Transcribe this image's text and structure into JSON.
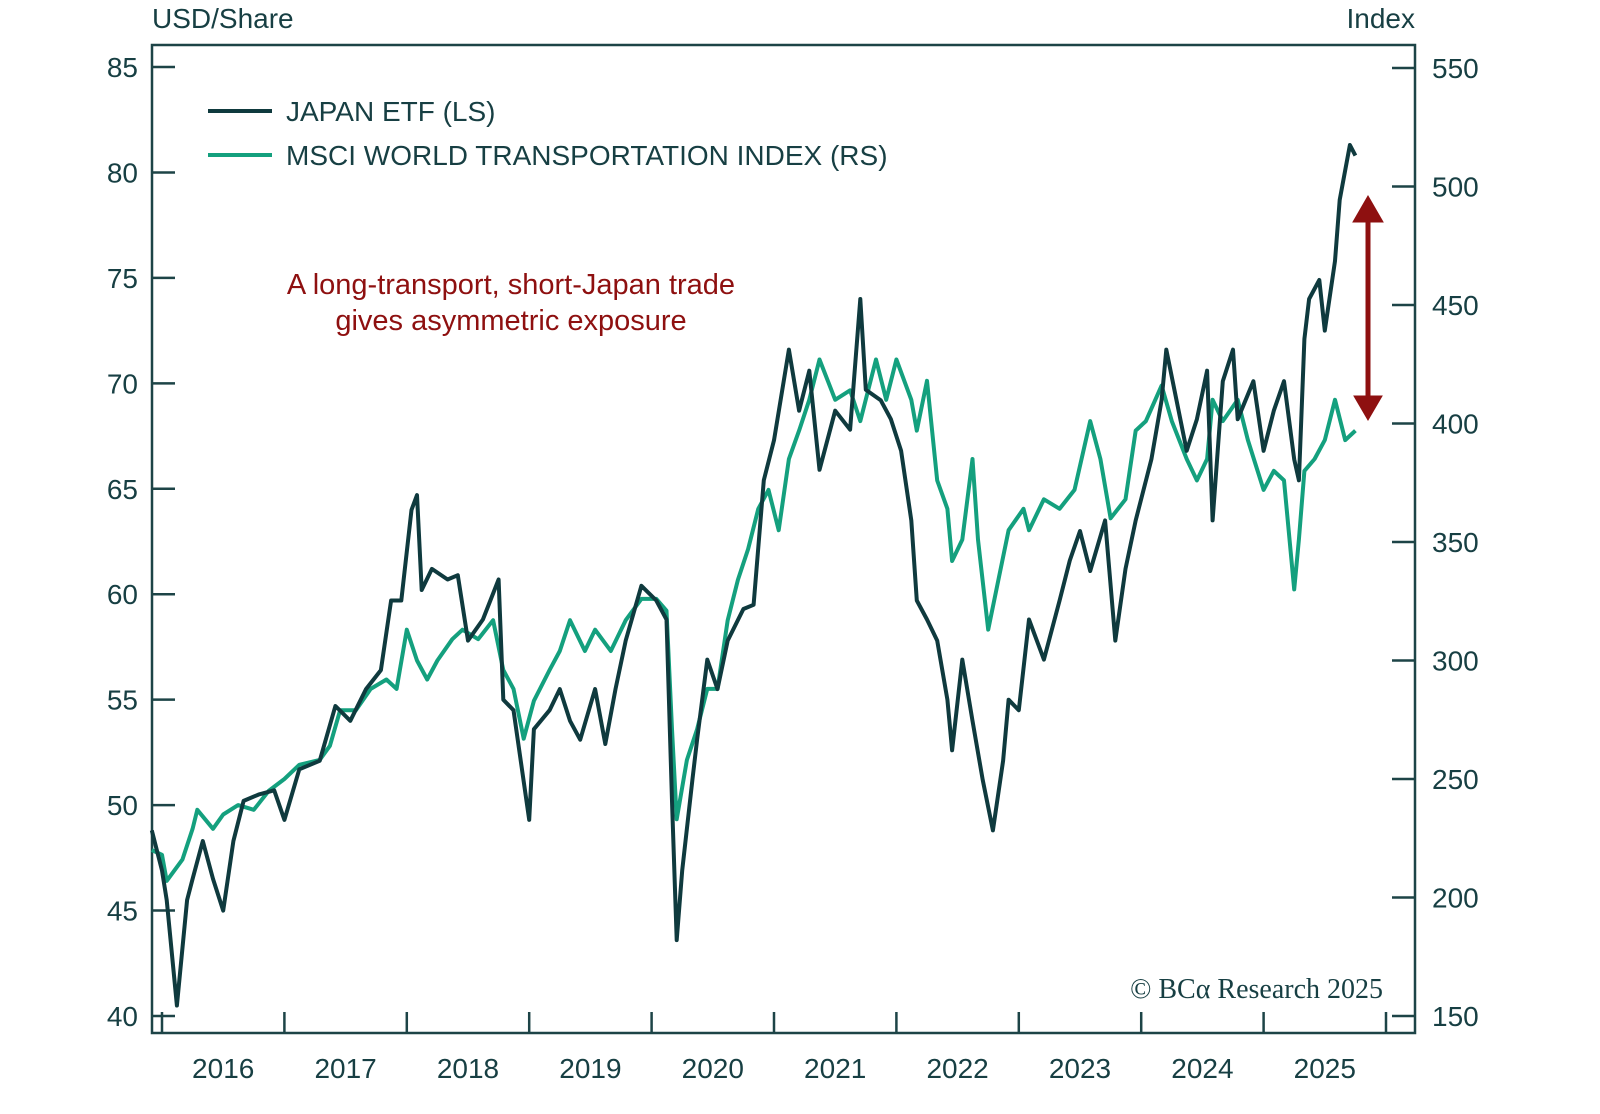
{
  "chart_data": {
    "type": "line",
    "left_axis_label": "USD/Share",
    "right_axis_label": "Index",
    "left_ylim": [
      40,
      85
    ],
    "left_yticks": [
      40,
      45,
      50,
      55,
      60,
      65,
      70,
      75,
      80,
      85
    ],
    "right_ylim": [
      150,
      550
    ],
    "right_yticks": [
      150,
      200,
      250,
      300,
      350,
      400,
      450,
      500,
      550
    ],
    "xlim": [
      "2016-01-01",
      "2026-01-01"
    ],
    "xticks": [
      "2016-01-01",
      "2017-01-01",
      "2018-01-01",
      "2019-01-01",
      "2020-01-01",
      "2021-01-01",
      "2022-01-01",
      "2023-01-01",
      "2024-01-01",
      "2025-01-01",
      "2026-01-01"
    ],
    "xtick_labels": [
      "2016",
      "2017",
      "2018",
      "2019",
      "2020",
      "2021",
      "2022",
      "2023",
      "2024",
      "2025"
    ],
    "grid": false,
    "legend_placement": "top-left",
    "annotation": {
      "lines": [
        "A long-transport, short-Japan trade",
        "gives asymmetric exposure"
      ],
      "color": "#8e1010",
      "arrow": "double-headed vertical arrow between the two series at the latest date"
    },
    "source": "© BCα Research 2025",
    "series": [
      {
        "name": "JAPAN ETF (LS)",
        "axis": "left",
        "color": "#0f3a3e",
        "points": [
          [
            "2015-12-01",
            48.8
          ],
          [
            "2016-01-01",
            46.9
          ],
          [
            "2016-01-15",
            45.5
          ],
          [
            "2016-02-15",
            40.5
          ],
          [
            "2016-03-15",
            45.5
          ],
          [
            "2016-04-01",
            46.5
          ],
          [
            "2016-05-01",
            48.3
          ],
          [
            "2016-06-01",
            46.5
          ],
          [
            "2016-07-01",
            45.0
          ],
          [
            "2016-08-01",
            48.3
          ],
          [
            "2016-09-01",
            50.2
          ],
          [
            "2016-10-15",
            50.5
          ],
          [
            "2016-12-01",
            50.7
          ],
          [
            "2017-01-01",
            49.3
          ],
          [
            "2017-02-15",
            51.7
          ],
          [
            "2017-04-15",
            52.1
          ],
          [
            "2017-06-01",
            54.7
          ],
          [
            "2017-07-15",
            54.0
          ],
          [
            "2017-09-01",
            55.5
          ],
          [
            "2017-10-15",
            56.4
          ],
          [
            "2017-11-15",
            59.7
          ],
          [
            "2017-12-15",
            59.7
          ],
          [
            "2018-01-15",
            64.0
          ],
          [
            "2018-02-01",
            64.7
          ],
          [
            "2018-02-15",
            60.2
          ],
          [
            "2018-03-15",
            61.2
          ],
          [
            "2018-05-01",
            60.7
          ],
          [
            "2018-06-01",
            60.9
          ],
          [
            "2018-07-01",
            57.8
          ],
          [
            "2018-08-15",
            58.8
          ],
          [
            "2018-10-01",
            60.7
          ],
          [
            "2018-10-15",
            55.0
          ],
          [
            "2018-11-15",
            54.5
          ],
          [
            "2019-01-01",
            49.3
          ],
          [
            "2019-01-15",
            53.6
          ],
          [
            "2019-03-01",
            54.5
          ],
          [
            "2019-04-01",
            55.5
          ],
          [
            "2019-05-01",
            54.0
          ],
          [
            "2019-06-01",
            53.1
          ],
          [
            "2019-07-15",
            55.5
          ],
          [
            "2019-08-15",
            52.9
          ],
          [
            "2019-09-15",
            55.5
          ],
          [
            "2019-10-15",
            57.8
          ],
          [
            "2019-12-01",
            60.4
          ],
          [
            "2020-01-15",
            59.7
          ],
          [
            "2020-02-15",
            58.8
          ],
          [
            "2020-03-01",
            50.2
          ],
          [
            "2020-03-15",
            43.6
          ],
          [
            "2020-04-01",
            46.9
          ],
          [
            "2020-05-01",
            51.2
          ],
          [
            "2020-05-15",
            53.1
          ],
          [
            "2020-06-15",
            56.9
          ],
          [
            "2020-07-15",
            55.5
          ],
          [
            "2020-08-15",
            57.8
          ],
          [
            "2020-10-01",
            59.3
          ],
          [
            "2020-11-01",
            59.5
          ],
          [
            "2020-12-01",
            65.4
          ],
          [
            "2021-01-01",
            67.3
          ],
          [
            "2021-02-15",
            71.6
          ],
          [
            "2021-03-15",
            68.7
          ],
          [
            "2021-04-15",
            70.6
          ],
          [
            "2021-05-15",
            65.9
          ],
          [
            "2021-07-01",
            68.7
          ],
          [
            "2021-08-15",
            67.8
          ],
          [
            "2021-09-15",
            74.0
          ],
          [
            "2021-10-01",
            69.7
          ],
          [
            "2021-11-15",
            69.2
          ],
          [
            "2021-12-15",
            68.3
          ],
          [
            "2022-01-15",
            66.8
          ],
          [
            "2022-02-15",
            63.5
          ],
          [
            "2022-03-01",
            59.7
          ],
          [
            "2022-04-01",
            58.8
          ],
          [
            "2022-05-01",
            57.8
          ],
          [
            "2022-06-01",
            55.0
          ],
          [
            "2022-06-15",
            52.6
          ],
          [
            "2022-07-15",
            56.9
          ],
          [
            "2022-08-15",
            54.0
          ],
          [
            "2022-09-15",
            51.2
          ],
          [
            "2022-10-15",
            48.8
          ],
          [
            "2022-11-15",
            52.1
          ],
          [
            "2022-12-01",
            55.0
          ],
          [
            "2023-01-01",
            54.5
          ],
          [
            "2023-02-01",
            58.8
          ],
          [
            "2023-03-15",
            56.9
          ],
          [
            "2023-05-01",
            59.7
          ],
          [
            "2023-06-01",
            61.6
          ],
          [
            "2023-07-01",
            63.0
          ],
          [
            "2023-08-01",
            61.1
          ],
          [
            "2023-09-15",
            63.5
          ],
          [
            "2023-10-15",
            57.8
          ],
          [
            "2023-11-15",
            61.2
          ],
          [
            "2023-12-15",
            63.5
          ],
          [
            "2024-02-01",
            66.4
          ],
          [
            "2024-03-01",
            69.2
          ],
          [
            "2024-03-15",
            71.6
          ],
          [
            "2024-04-15",
            69.2
          ],
          [
            "2024-05-15",
            66.8
          ],
          [
            "2024-06-15",
            68.3
          ],
          [
            "2024-07-15",
            70.6
          ],
          [
            "2024-08-01",
            63.5
          ],
          [
            "2024-09-01",
            70.1
          ],
          [
            "2024-10-01",
            71.6
          ],
          [
            "2024-10-15",
            68.3
          ],
          [
            "2024-12-01",
            70.1
          ],
          [
            "2025-01-01",
            66.8
          ],
          [
            "2025-02-01",
            68.7
          ],
          [
            "2025-03-01",
            70.1
          ],
          [
            "2025-04-01",
            66.4
          ],
          [
            "2025-04-15",
            65.4
          ],
          [
            "2025-05-01",
            72.1
          ],
          [
            "2025-05-15",
            74.0
          ],
          [
            "2025-06-15",
            74.9
          ],
          [
            "2025-07-01",
            72.5
          ],
          [
            "2025-08-01",
            75.8
          ],
          [
            "2025-08-15",
            78.7
          ],
          [
            "2025-09-01",
            80.1
          ],
          [
            "2025-09-15",
            81.3
          ],
          [
            "2025-10-01",
            80.8
          ]
        ]
      },
      {
        "name": "MSCI WORLD TRANSPORTATION INDEX (RS)",
        "axis": "right",
        "color": "#14a07e",
        "points": [
          [
            "2015-12-01",
            220
          ],
          [
            "2016-01-01",
            218
          ],
          [
            "2016-01-15",
            207
          ],
          [
            "2016-03-01",
            216
          ],
          [
            "2016-04-01",
            229
          ],
          [
            "2016-04-15",
            237
          ],
          [
            "2016-06-01",
            229
          ],
          [
            "2016-07-01",
            235
          ],
          [
            "2016-08-15",
            239
          ],
          [
            "2016-10-01",
            237
          ],
          [
            "2016-11-15",
            245
          ],
          [
            "2017-01-01",
            250
          ],
          [
            "2017-02-15",
            256
          ],
          [
            "2017-04-15",
            258
          ],
          [
            "2017-05-15",
            264
          ],
          [
            "2017-06-15",
            279
          ],
          [
            "2017-08-01",
            279
          ],
          [
            "2017-09-15",
            288
          ],
          [
            "2017-11-01",
            292
          ],
          [
            "2017-12-01",
            288
          ],
          [
            "2018-01-01",
            313
          ],
          [
            "2018-02-01",
            300
          ],
          [
            "2018-03-01",
            292
          ],
          [
            "2018-04-01",
            300
          ],
          [
            "2018-05-15",
            309
          ],
          [
            "2018-06-15",
            313
          ],
          [
            "2018-08-01",
            309
          ],
          [
            "2018-09-15",
            317
          ],
          [
            "2018-10-15",
            296
          ],
          [
            "2018-11-15",
            288
          ],
          [
            "2018-12-15",
            267
          ],
          [
            "2019-01-15",
            283
          ],
          [
            "2019-03-01",
            296
          ],
          [
            "2019-04-01",
            304
          ],
          [
            "2019-05-01",
            317
          ],
          [
            "2019-06-15",
            304
          ],
          [
            "2019-07-15",
            313
          ],
          [
            "2019-09-01",
            304
          ],
          [
            "2019-10-15",
            317
          ],
          [
            "2019-12-01",
            326
          ],
          [
            "2020-01-15",
            326
          ],
          [
            "2020-02-15",
            321
          ],
          [
            "2020-03-01",
            271
          ],
          [
            "2020-03-15",
            233
          ],
          [
            "2020-04-15",
            258
          ],
          [
            "2020-05-15",
            271
          ],
          [
            "2020-06-15",
            288
          ],
          [
            "2020-07-15",
            288
          ],
          [
            "2020-08-15",
            317
          ],
          [
            "2020-09-15",
            334
          ],
          [
            "2020-10-15",
            347
          ],
          [
            "2020-11-15",
            364
          ],
          [
            "2020-12-15",
            372
          ],
          [
            "2021-01-15",
            355
          ],
          [
            "2021-02-15",
            385
          ],
          [
            "2021-03-15",
            397
          ],
          [
            "2021-04-15",
            410
          ],
          [
            "2021-05-15",
            427
          ],
          [
            "2021-07-01",
            410
          ],
          [
            "2021-08-15",
            414
          ],
          [
            "2021-09-15",
            401
          ],
          [
            "2021-11-01",
            427
          ],
          [
            "2021-12-01",
            410
          ],
          [
            "2022-01-01",
            427
          ],
          [
            "2022-02-15",
            410
          ],
          [
            "2022-03-01",
            397
          ],
          [
            "2022-04-01",
            418
          ],
          [
            "2022-05-01",
            376
          ],
          [
            "2022-06-01",
            364
          ],
          [
            "2022-06-15",
            342
          ],
          [
            "2022-07-15",
            351
          ],
          [
            "2022-08-15",
            385
          ],
          [
            "2022-09-01",
            351
          ],
          [
            "2022-10-01",
            313
          ],
          [
            "2022-11-01",
            334
          ],
          [
            "2022-12-01",
            355
          ],
          [
            "2023-01-15",
            364
          ],
          [
            "2023-02-01",
            355
          ],
          [
            "2023-03-15",
            368
          ],
          [
            "2023-05-01",
            364
          ],
          [
            "2023-06-15",
            372
          ],
          [
            "2023-08-01",
            401
          ],
          [
            "2023-09-01",
            385
          ],
          [
            "2023-10-01",
            360
          ],
          [
            "2023-11-15",
            368
          ],
          [
            "2023-12-15",
            397
          ],
          [
            "2024-01-15",
            401
          ],
          [
            "2024-03-01",
            416
          ],
          [
            "2024-04-01",
            401
          ],
          [
            "2024-05-15",
            385
          ],
          [
            "2024-06-15",
            376
          ],
          [
            "2024-07-15",
            385
          ],
          [
            "2024-08-01",
            410
          ],
          [
            "2024-09-01",
            401
          ],
          [
            "2024-10-15",
            410
          ],
          [
            "2024-11-15",
            393
          ],
          [
            "2025-01-01",
            372
          ],
          [
            "2025-02-01",
            380
          ],
          [
            "2025-03-01",
            376
          ],
          [
            "2025-04-01",
            330
          ],
          [
            "2025-04-15",
            351
          ],
          [
            "2025-05-01",
            380
          ],
          [
            "2025-06-01",
            385
          ],
          [
            "2025-07-01",
            393
          ],
          [
            "2025-08-01",
            410
          ],
          [
            "2025-09-01",
            393
          ],
          [
            "2025-10-01",
            397
          ]
        ]
      }
    ]
  }
}
